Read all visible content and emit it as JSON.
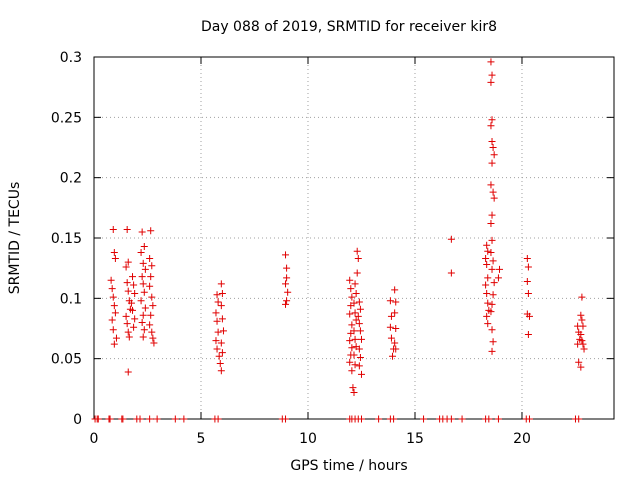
{
  "chart_data": {
    "type": "scatter",
    "title": "Day 088 of 2019, SRMTID for receiver kir8",
    "xlabel": "GPS time / hours",
    "ylabel": "SRMTID / TECUs",
    "xlim": [
      0,
      24.3
    ],
    "ylim": [
      0,
      0.3
    ],
    "xticks": [
      0,
      5,
      10,
      15,
      20
    ],
    "xtick_labels": [
      "0",
      "5",
      "10",
      "15",
      "20"
    ],
    "yticks": [
      0,
      0.05,
      0.1,
      0.15,
      0.2,
      0.25,
      0.3
    ],
    "ytick_labels": [
      "0",
      "0.05",
      "0.1",
      "0.15",
      "0.2",
      "0.25",
      "0.3"
    ],
    "grid": true,
    "marker": "+",
    "series": [
      {
        "name": "SRMTID",
        "color": "#e00000",
        "points": [
          [
            0.9,
            0.157
          ],
          [
            0.95,
            0.138
          ],
          [
            1.0,
            0.133
          ],
          [
            0.8,
            0.115
          ],
          [
            0.85,
            0.108
          ],
          [
            0.9,
            0.101
          ],
          [
            0.95,
            0.094
          ],
          [
            1.0,
            0.088
          ],
          [
            0.85,
            0.082
          ],
          [
            0.9,
            0.074
          ],
          [
            1.05,
            0.067
          ],
          [
            0.95,
            0.062
          ],
          [
            1.55,
            0.157
          ],
          [
            1.6,
            0.13
          ],
          [
            1.5,
            0.126
          ],
          [
            1.55,
            0.113
          ],
          [
            1.6,
            0.106
          ],
          [
            1.65,
            0.098
          ],
          [
            1.7,
            0.091
          ],
          [
            1.5,
            0.085
          ],
          [
            1.55,
            0.079
          ],
          [
            1.6,
            0.072
          ],
          [
            1.65,
            0.068
          ],
          [
            1.6,
            0.039
          ],
          [
            1.8,
            0.118
          ],
          [
            1.85,
            0.111
          ],
          [
            1.9,
            0.104
          ],
          [
            1.75,
            0.096
          ],
          [
            1.8,
            0.09
          ],
          [
            1.9,
            0.083
          ],
          [
            1.85,
            0.076
          ],
          [
            2.25,
            0.155
          ],
          [
            2.35,
            0.143
          ],
          [
            2.2,
            0.138
          ],
          [
            2.3,
            0.129
          ],
          [
            2.4,
            0.124
          ],
          [
            2.25,
            0.118
          ],
          [
            2.3,
            0.112
          ],
          [
            2.35,
            0.105
          ],
          [
            2.2,
            0.098
          ],
          [
            2.4,
            0.092
          ],
          [
            2.3,
            0.086
          ],
          [
            2.25,
            0.08
          ],
          [
            2.35,
            0.074
          ],
          [
            2.3,
            0.068
          ],
          [
            2.65,
            0.156
          ],
          [
            2.6,
            0.133
          ],
          [
            2.7,
            0.127
          ],
          [
            2.65,
            0.118
          ],
          [
            2.6,
            0.11
          ],
          [
            2.7,
            0.101
          ],
          [
            2.75,
            0.094
          ],
          [
            2.65,
            0.086
          ],
          [
            2.6,
            0.078
          ],
          [
            2.7,
            0.072
          ],
          [
            2.75,
            0.067
          ],
          [
            2.8,
            0.063
          ],
          [
            5.75,
            0.103
          ],
          [
            5.8,
            0.097
          ],
          [
            5.7,
            0.088
          ],
          [
            5.75,
            0.081
          ],
          [
            5.8,
            0.072
          ],
          [
            5.7,
            0.065
          ],
          [
            5.75,
            0.058
          ],
          [
            5.85,
            0.052
          ],
          [
            5.9,
            0.046
          ],
          [
            5.95,
            0.04
          ],
          [
            5.95,
            0.112
          ],
          [
            6.0,
            0.104
          ],
          [
            5.95,
            0.094
          ],
          [
            6.0,
            0.083
          ],
          [
            6.05,
            0.073
          ],
          [
            5.95,
            0.063
          ],
          [
            6.0,
            0.055
          ],
          [
            8.95,
            0.136
          ],
          [
            9.0,
            0.125
          ],
          [
            9.0,
            0.117
          ],
          [
            8.95,
            0.112
          ],
          [
            9.05,
            0.105
          ],
          [
            9.0,
            0.098
          ],
          [
            8.95,
            0.095
          ],
          [
            11.95,
            0.115
          ],
          [
            12.0,
            0.108
          ],
          [
            12.05,
            0.101
          ],
          [
            12.0,
            0.094
          ],
          [
            11.95,
            0.087
          ],
          [
            12.05,
            0.078
          ],
          [
            12.0,
            0.071
          ],
          [
            11.95,
            0.065
          ],
          [
            12.05,
            0.059
          ],
          [
            12.0,
            0.053
          ],
          [
            11.95,
            0.047
          ],
          [
            12.05,
            0.04
          ],
          [
            12.2,
            0.112
          ],
          [
            12.25,
            0.104
          ],
          [
            12.15,
            0.096
          ],
          [
            12.2,
            0.088
          ],
          [
            12.25,
            0.082
          ],
          [
            12.15,
            0.073
          ],
          [
            12.2,
            0.066
          ],
          [
            12.25,
            0.06
          ],
          [
            12.15,
            0.053
          ],
          [
            12.2,
            0.045
          ],
          [
            12.1,
            0.026
          ],
          [
            12.15,
            0.022
          ],
          [
            12.3,
            0.139
          ],
          [
            12.35,
            0.133
          ],
          [
            12.3,
            0.121
          ],
          [
            12.4,
            0.097
          ],
          [
            12.45,
            0.091
          ],
          [
            12.35,
            0.085
          ],
          [
            12.4,
            0.079
          ],
          [
            12.45,
            0.073
          ],
          [
            12.5,
            0.066
          ],
          [
            12.4,
            0.058
          ],
          [
            12.45,
            0.051
          ],
          [
            12.4,
            0.044
          ],
          [
            12.5,
            0.037
          ],
          [
            13.85,
            0.098
          ],
          [
            13.9,
            0.085
          ],
          [
            13.85,
            0.076
          ],
          [
            13.9,
            0.067
          ],
          [
            14.0,
            0.058
          ],
          [
            13.95,
            0.052
          ],
          [
            14.05,
            0.107
          ],
          [
            14.1,
            0.097
          ],
          [
            14.05,
            0.088
          ],
          [
            14.1,
            0.075
          ],
          [
            14.05,
            0.063
          ],
          [
            14.1,
            0.058
          ],
          [
            16.7,
            0.149
          ],
          [
            16.7,
            0.121
          ],
          [
            18.35,
            0.144
          ],
          [
            18.4,
            0.139
          ],
          [
            18.3,
            0.133
          ],
          [
            18.35,
            0.128
          ],
          [
            18.4,
            0.117
          ],
          [
            18.3,
            0.111
          ],
          [
            18.35,
            0.104
          ],
          [
            18.4,
            0.096
          ],
          [
            18.45,
            0.09
          ],
          [
            18.35,
            0.085
          ],
          [
            18.4,
            0.079
          ],
          [
            18.55,
            0.296
          ],
          [
            18.6,
            0.285
          ],
          [
            18.55,
            0.279
          ],
          [
            18.6,
            0.248
          ],
          [
            18.55,
            0.243
          ],
          [
            18.6,
            0.23
          ],
          [
            18.65,
            0.225
          ],
          [
            18.7,
            0.219
          ],
          [
            18.6,
            0.212
          ],
          [
            18.55,
            0.194
          ],
          [
            18.65,
            0.188
          ],
          [
            18.7,
            0.183
          ],
          [
            18.6,
            0.169
          ],
          [
            18.55,
            0.162
          ],
          [
            18.6,
            0.148
          ],
          [
            18.55,
            0.138
          ],
          [
            18.65,
            0.131
          ],
          [
            18.6,
            0.124
          ],
          [
            18.7,
            0.113
          ],
          [
            18.65,
            0.103
          ],
          [
            18.6,
            0.095
          ],
          [
            18.55,
            0.089
          ],
          [
            18.6,
            0.074
          ],
          [
            18.65,
            0.064
          ],
          [
            18.6,
            0.056
          ],
          [
            18.95,
            0.124
          ],
          [
            18.9,
            0.117
          ],
          [
            20.25,
            0.133
          ],
          [
            20.3,
            0.126
          ],
          [
            20.25,
            0.114
          ],
          [
            20.3,
            0.104
          ],
          [
            20.25,
            0.087
          ],
          [
            20.35,
            0.085
          ],
          [
            20.3,
            0.07
          ],
          [
            22.6,
            0.077
          ],
          [
            22.65,
            0.072
          ],
          [
            22.7,
            0.066
          ],
          [
            22.6,
            0.062
          ],
          [
            22.65,
            0.047
          ],
          [
            22.75,
            0.043
          ],
          [
            22.8,
            0.101
          ],
          [
            22.75,
            0.086
          ],
          [
            22.8,
            0.082
          ],
          [
            22.85,
            0.077
          ],
          [
            22.75,
            0.07
          ],
          [
            22.8,
            0.065
          ],
          [
            22.85,
            0.062
          ],
          [
            22.9,
            0.058
          ],
          [
            0.05,
            0
          ],
          [
            0.15,
            0
          ],
          [
            0.2,
            0
          ],
          [
            0.7,
            0
          ],
          [
            0.75,
            0
          ],
          [
            1.3,
            0
          ],
          [
            1.35,
            0
          ],
          [
            2.0,
            0
          ],
          [
            2.15,
            0
          ],
          [
            2.6,
            0
          ],
          [
            2.95,
            0
          ],
          [
            3.8,
            0
          ],
          [
            4.2,
            0
          ],
          [
            5.65,
            0
          ],
          [
            5.8,
            0
          ],
          [
            8.8,
            0
          ],
          [
            8.95,
            0
          ],
          [
            11.95,
            0
          ],
          [
            12.05,
            0
          ],
          [
            12.2,
            0
          ],
          [
            12.35,
            0
          ],
          [
            12.5,
            0
          ],
          [
            13.3,
            0
          ],
          [
            13.85,
            0
          ],
          [
            14.0,
            0
          ],
          [
            15.4,
            0
          ],
          [
            16.15,
            0
          ],
          [
            16.3,
            0
          ],
          [
            16.5,
            0
          ],
          [
            16.7,
            0
          ],
          [
            17.2,
            0
          ],
          [
            18.3,
            0
          ],
          [
            18.45,
            0
          ],
          [
            18.9,
            0
          ],
          [
            20.2,
            0
          ],
          [
            20.35,
            0
          ],
          [
            22.5,
            0
          ],
          [
            22.65,
            0
          ]
        ]
      }
    ]
  }
}
